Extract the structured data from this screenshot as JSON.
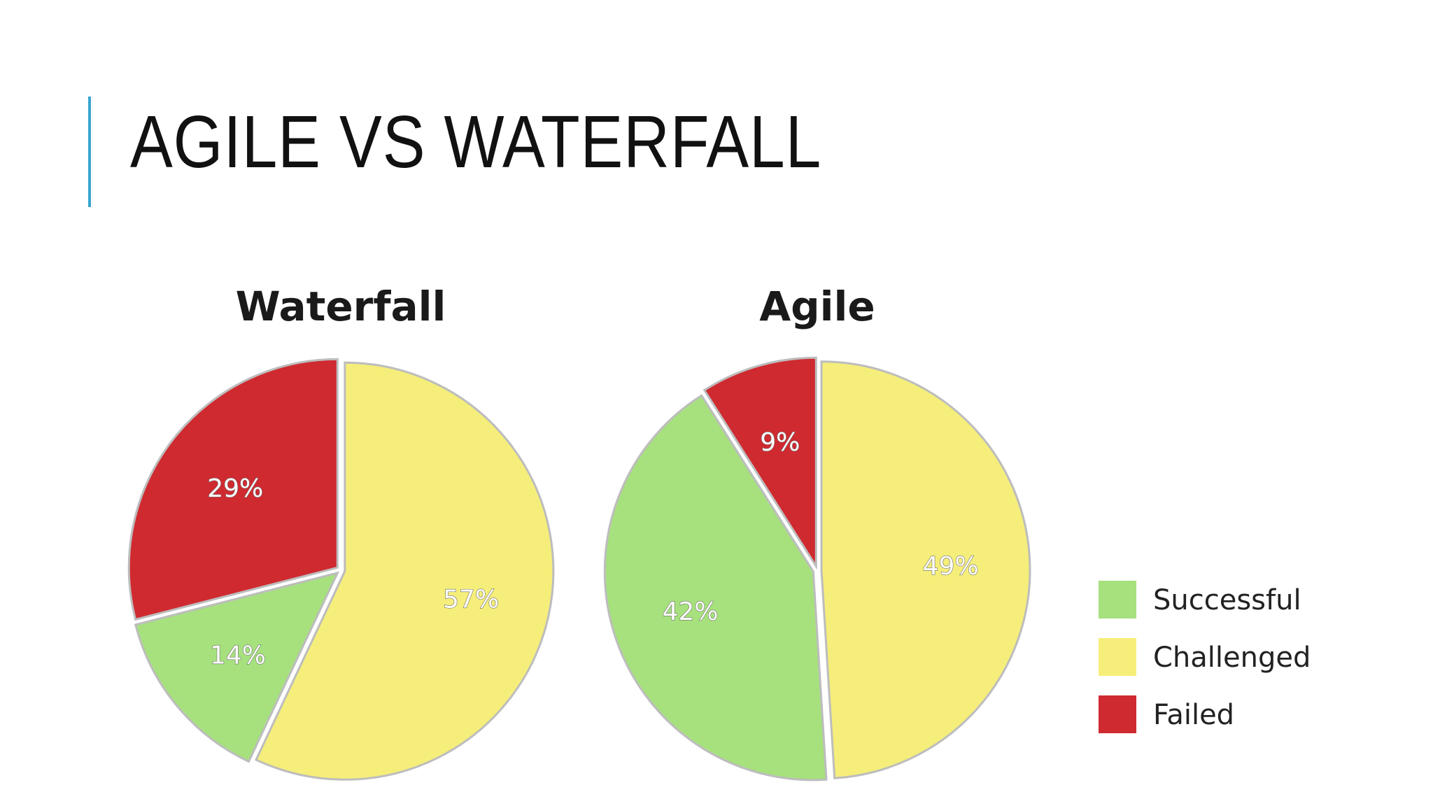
{
  "slide": {
    "title": "AGILE VS WATERFALL",
    "accent_color": "#3aa6d0"
  },
  "chart_data": [
    {
      "type": "pie",
      "title": "Waterfall",
      "categories": [
        "Successful",
        "Challenged",
        "Failed"
      ],
      "values": [
        14,
        57,
        29
      ],
      "labels": [
        "14%",
        "57%",
        "29%"
      ],
      "colors": [
        "#a6e17d",
        "#f5ee7a",
        "#cf2a30"
      ]
    },
    {
      "type": "pie",
      "title": "Agile",
      "categories": [
        "Successful",
        "Challenged",
        "Failed"
      ],
      "values": [
        42,
        49,
        9
      ],
      "labels": [
        "42%",
        "49%",
        "9%"
      ],
      "colors": [
        "#a6e17d",
        "#f5ee7a",
        "#cf2a30"
      ]
    }
  ],
  "legend": {
    "placement": "right",
    "items": [
      {
        "label": "Successful",
        "color": "#a6e17d"
      },
      {
        "label": "Challenged",
        "color": "#f5ee7a"
      },
      {
        "label": "Failed",
        "color": "#cf2a30"
      }
    ]
  }
}
